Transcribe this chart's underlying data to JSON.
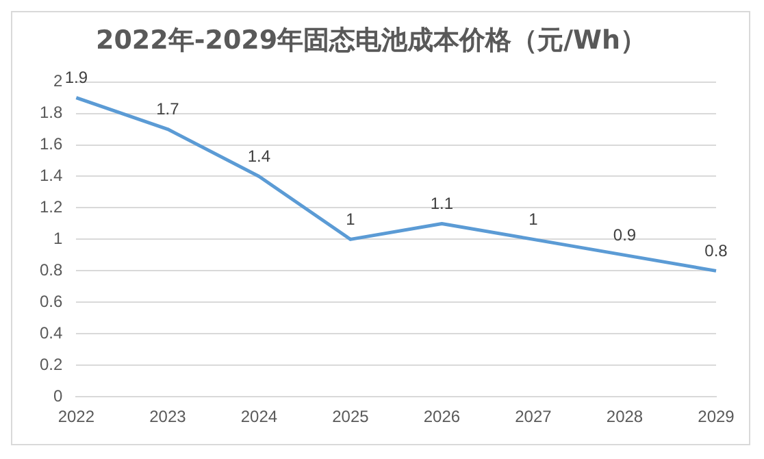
{
  "chart_data": {
    "type": "line",
    "title": "2022年-2029年固态电池成本价格（元/Wh）",
    "categories": [
      "2022",
      "2023",
      "2024",
      "2025",
      "2026",
      "2027",
      "2028",
      "2029"
    ],
    "series": [
      {
        "color": "#5b9bd5",
        "values": [
          1.9,
          1.7,
          1.4,
          1,
          1.1,
          1,
          0.9,
          0.8
        ]
      }
    ],
    "ylim": [
      0,
      2
    ],
    "yticks": [
      0,
      0.2,
      0.4,
      0.6,
      0.8,
      1,
      1.2,
      1.4,
      1.6,
      1.8,
      2
    ],
    "grid": "y",
    "legend": false,
    "data_labels": true,
    "marker": "none",
    "line_style": "solid"
  }
}
